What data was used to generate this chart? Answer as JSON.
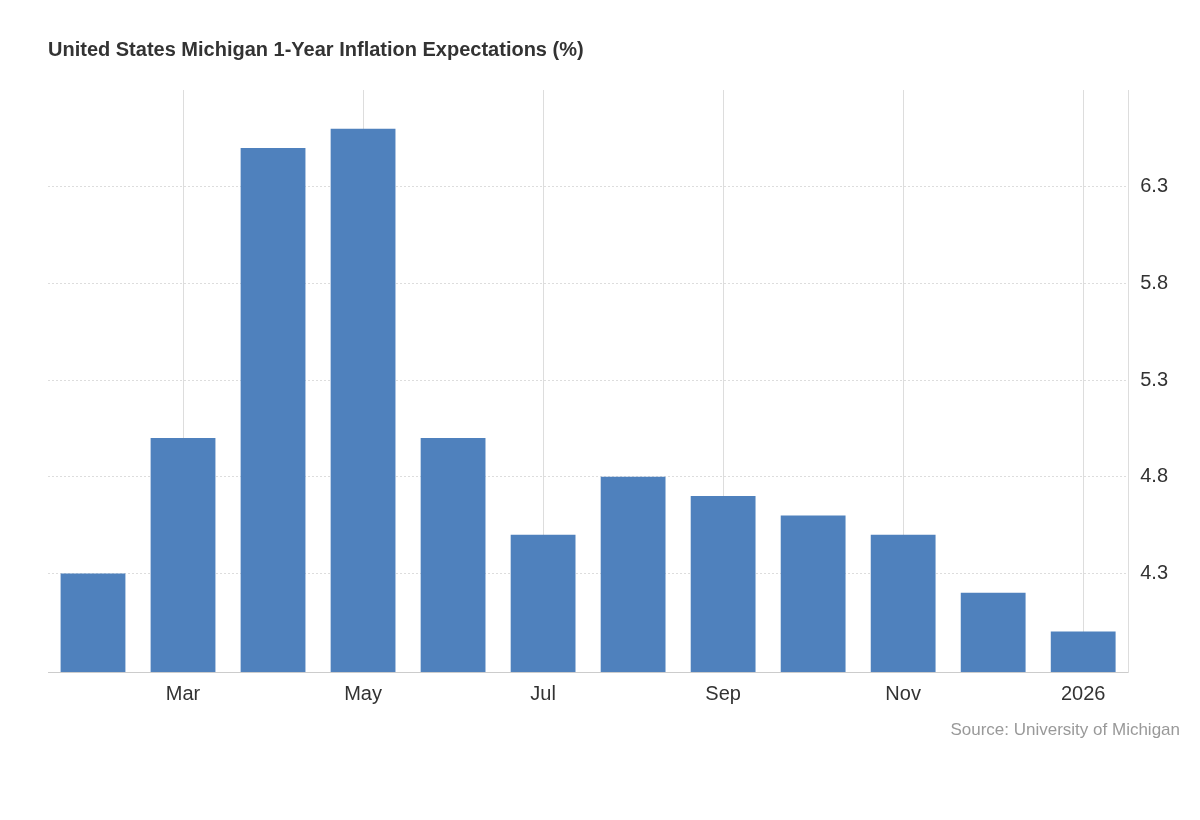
{
  "chart_data": {
    "type": "bar",
    "title": "United States Michigan 1-Year Inflation Expectations (%)",
    "categories": [
      null,
      "Mar",
      null,
      "May",
      null,
      "Jul",
      null,
      "Sep",
      null,
      "Nov",
      null,
      "2026"
    ],
    "values": [
      4.3,
      5.0,
      6.5,
      6.6,
      5.0,
      4.5,
      4.8,
      4.7,
      4.6,
      4.5,
      4.2,
      4.0
    ],
    "color": "#4f81bd",
    "ylim": [
      3.79,
      6.8
    ],
    "yticks": [
      4.3,
      4.8,
      5.3,
      5.8,
      6.3
    ],
    "grid": true,
    "annotations": [
      "Source: University of Michigan"
    ]
  }
}
